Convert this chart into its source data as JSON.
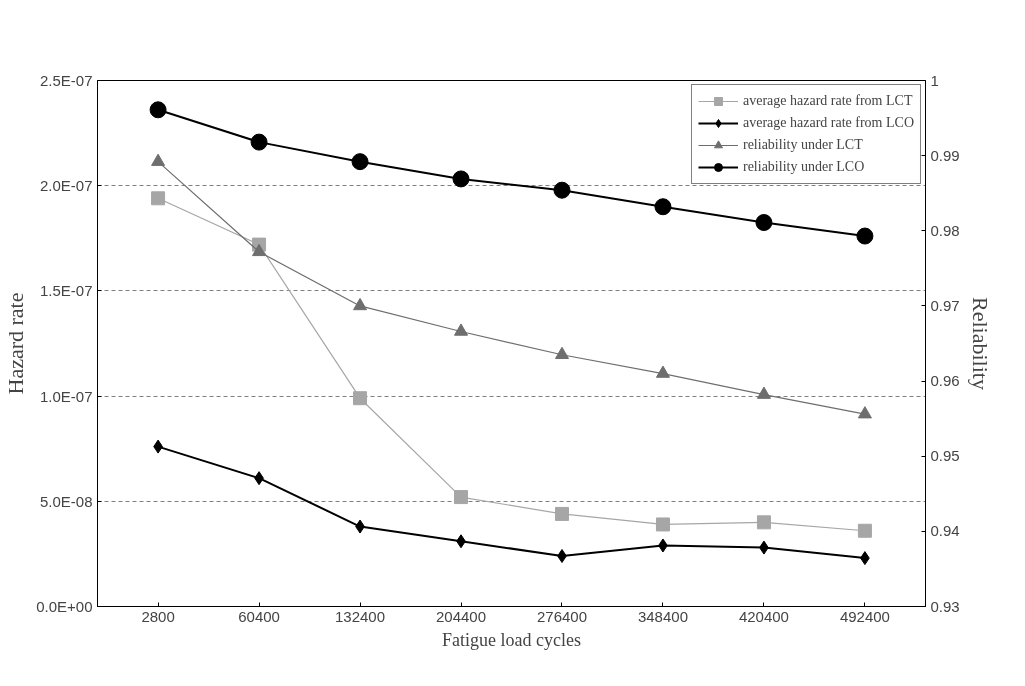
{
  "chart_data": {
    "type": "line",
    "xlabel": "Fatigue load cycles",
    "ylabel": "Hazard rate",
    "y2label": "Reliability",
    "categories": [
      "2800",
      "60400",
      "132400",
      "204400",
      "276400",
      "348400",
      "420400",
      "492400"
    ],
    "ylim": [
      0,
      2.5e-07
    ],
    "yticks": [
      {
        "value": 0,
        "label": "0.0E+00"
      },
      {
        "value": 5e-08,
        "label": "5.0E-08"
      },
      {
        "value": 1e-07,
        "label": "1.0E-07"
      },
      {
        "value": 1.5e-07,
        "label": "1.5E-07"
      },
      {
        "value": 2e-07,
        "label": "2.0E-07"
      },
      {
        "value": 2.5e-07,
        "label": "2.5E-07"
      }
    ],
    "y2lim": [
      0.93,
      1
    ],
    "y2ticks": [
      0.93,
      0.94,
      0.95,
      0.96,
      0.97,
      0.98,
      0.99,
      1
    ],
    "grid": "y",
    "legend": "top right",
    "series": [
      {
        "name": "average hazard rate from LCT",
        "color": "#a6a6a6",
        "marker": "square",
        "values": [
          1.94e-07,
          1.72e-07,
          9.9e-08,
          5.2e-08,
          4.4e-08,
          3.9e-08,
          4e-08,
          3.6e-08
        ]
      },
      {
        "name": "average hazard rate from LCO",
        "color": "#000000",
        "marker": "diamond",
        "values": [
          7.6e-08,
          6.1e-08,
          3.8e-08,
          3.1e-08,
          2.4e-08,
          2.9e-08,
          2.8e-08,
          2.3e-08
        ]
      },
      {
        "name": "reliability under LCT",
        "color": "#6e6e6e",
        "marker": "triangle",
        "axis": "y2",
        "values": [
          0.9892,
          0.9772,
          0.97,
          0.9666,
          0.9635,
          0.961,
          0.9582,
          0.9556
        ]
      },
      {
        "name": "reliability under LCO",
        "color": "#000000",
        "marker": "circle",
        "axis": "y2",
        "values": [
          0.9961,
          0.9918,
          0.9892,
          0.9869,
          0.9854,
          0.9832,
          0.9811,
          0.9793
        ]
      }
    ]
  }
}
